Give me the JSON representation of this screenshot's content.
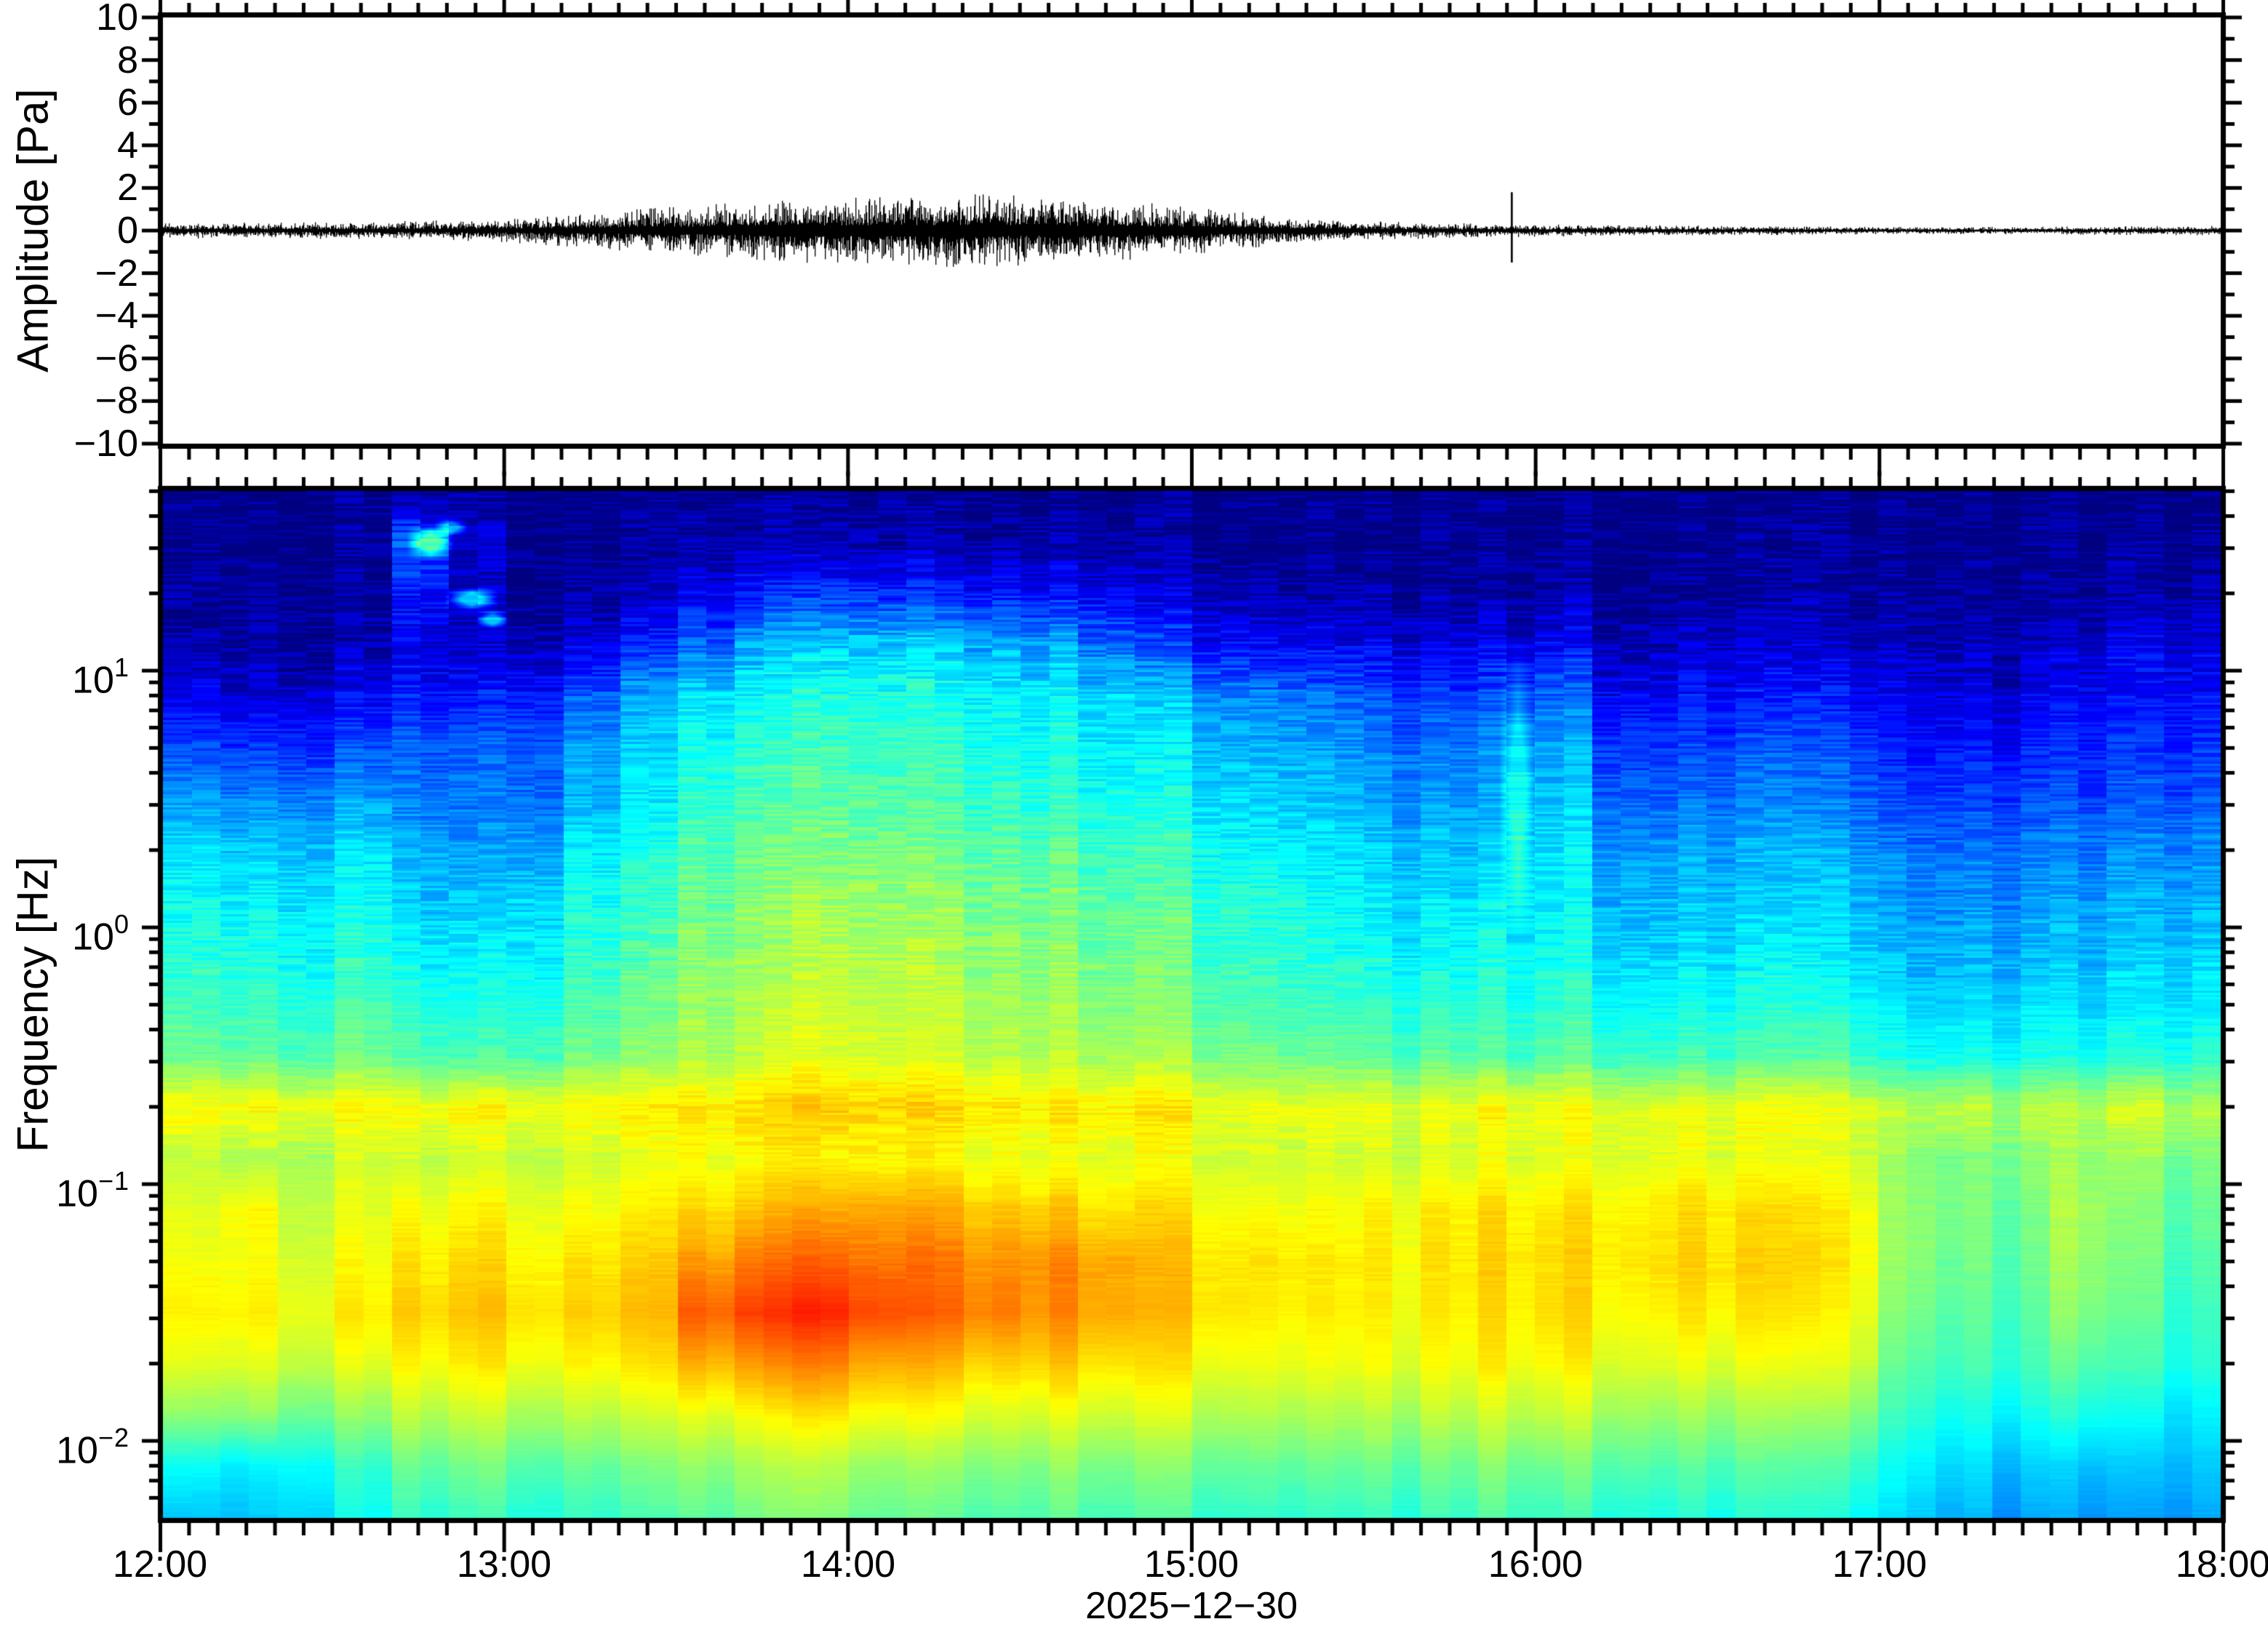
{
  "figure": {
    "background": "#ffffff",
    "frame_color": "#000000",
    "trace_color": "#000000"
  },
  "waveform_panel": {
    "ylabel": "Amplitude [Pa]",
    "ytick_labels": [
      "10",
      "8",
      "6",
      "4",
      "2",
      "0",
      "−2",
      "−4",
      "−6",
      "−8",
      "−10"
    ],
    "ylim": [
      -10,
      10
    ]
  },
  "spectrogram_panel": {
    "ylabel": "Frequency [Hz]",
    "ytick_labels": [
      {
        "base": "10",
        "exp": "1"
      },
      {
        "base": "10",
        "exp": "0"
      },
      {
        "base": "10",
        "exp": "−1"
      },
      {
        "base": "10",
        "exp": "−2"
      }
    ]
  },
  "xaxis": {
    "tick_labels": [
      "12:00",
      "13:00",
      "14:00",
      "15:00",
      "16:00",
      "17:00",
      "18:00"
    ],
    "date_label": "2025−12−30"
  },
  "chart_data": [
    {
      "type": "line",
      "name": "infrasound-waveform",
      "ylabel": "Amplitude [Pa]",
      "ylim": [
        -10,
        10
      ],
      "x_start_hour": 12,
      "x_end_hour": 18,
      "envelope_hours": [
        12.0,
        12.3,
        12.6,
        12.8,
        13.0,
        13.2,
        13.4,
        13.6,
        13.8,
        14.0,
        14.2,
        14.4,
        14.6,
        14.8,
        15.0,
        15.2,
        15.4,
        15.6,
        15.8,
        16.0,
        16.3,
        16.6,
        17.0,
        17.4,
        17.7,
        18.0
      ],
      "envelope_amplitude_pa": [
        0.22,
        0.22,
        0.24,
        0.28,
        0.33,
        0.45,
        0.6,
        0.72,
        0.85,
        0.95,
        1.0,
        1.0,
        0.92,
        0.82,
        0.65,
        0.45,
        0.3,
        0.24,
        0.2,
        0.17,
        0.15,
        0.13,
        0.1,
        0.1,
        0.12,
        0.13
      ],
      "transient": {
        "hour": 15.93,
        "peak_pa": 1.8,
        "trough_pa": -1.5
      }
    },
    {
      "type": "heatmap",
      "name": "spectrogram",
      "ylabel": "Frequency [Hz]",
      "yscale": "log",
      "freq_range_hz": [
        0.005,
        50
      ],
      "log10f_top": 1.7,
      "log10f_bottom": -2.3,
      "time_start_hour": 12,
      "time_end_hour": 18,
      "time_bin_minutes": 10,
      "colormap": "jet",
      "row_log10f": [
        1.7,
        1.5,
        1.3,
        1.1,
        0.9,
        0.7,
        0.5,
        0.3,
        0.1,
        -0.1,
        -0.3,
        -0.5,
        -0.7,
        -0.9,
        -1.1,
        -1.3,
        -1.5,
        -1.7,
        -1.9,
        -2.1,
        -2.3
      ],
      "values_0_100": [
        [
          3,
          3,
          3,
          3,
          3,
          3,
          3,
          3,
          3,
          4,
          4,
          4,
          4,
          4,
          4,
          4,
          4,
          3,
          3,
          3,
          3,
          3,
          3,
          3,
          3,
          3,
          3,
          3,
          3,
          3,
          3,
          3,
          3,
          3,
          3,
          3
        ],
        [
          3,
          3,
          3,
          3,
          22,
          8,
          4,
          4,
          5,
          5,
          6,
          6,
          6,
          6,
          6,
          6,
          5,
          4,
          4,
          3,
          3,
          3,
          3,
          3,
          3,
          3,
          3,
          3,
          3,
          3,
          3,
          3,
          3,
          3,
          4,
          4
        ],
        [
          4,
          4,
          4,
          4,
          14,
          6,
          5,
          6,
          8,
          12,
          16,
          18,
          18,
          17,
          16,
          15,
          14,
          10,
          8,
          6,
          6,
          5,
          5,
          5,
          6,
          4,
          4,
          4,
          4,
          4,
          4,
          4,
          4,
          5,
          5,
          6
        ],
        [
          6,
          5,
          5,
          6,
          10,
          8,
          9,
          12,
          18,
          24,
          30,
          33,
          34,
          33,
          32,
          31,
          26,
          20,
          16,
          14,
          13,
          12,
          12,
          12,
          14,
          9,
          9,
          9,
          9,
          9,
          7,
          7,
          7,
          10,
          12,
          12
        ],
        [
          12,
          11,
          11,
          12,
          15,
          15,
          18,
          24,
          30,
          36,
          39,
          41,
          41,
          40,
          39,
          38,
          36,
          32,
          28,
          26,
          24,
          20,
          20,
          20,
          24,
          15,
          15,
          15,
          15,
          15,
          11,
          11,
          11,
          14,
          14,
          15
        ],
        [
          20,
          19,
          19,
          20,
          22,
          22,
          25,
          30,
          34,
          40,
          42,
          44,
          44,
          43,
          42,
          41,
          38,
          36,
          33,
          31,
          29,
          26,
          26,
          26,
          30,
          21,
          21,
          21,
          21,
          21,
          16,
          16,
          16,
          18,
          18,
          19
        ],
        [
          28,
          27,
          27,
          28,
          24,
          24,
          26,
          32,
          36,
          43,
          45,
          46,
          46,
          45,
          44,
          43,
          41,
          39,
          36,
          34,
          32,
          29,
          29,
          29,
          33,
          25,
          25,
          25,
          25,
          25,
          20,
          20,
          20,
          22,
          22,
          23
        ],
        [
          35,
          34,
          34,
          35,
          30,
          28,
          32,
          38,
          41,
          46,
          48,
          50,
          50,
          49,
          48,
          47,
          45,
          43,
          40,
          38,
          36,
          33,
          33,
          33,
          36,
          30,
          30,
          30,
          30,
          30,
          25,
          25,
          25,
          27,
          27,
          28
        ],
        [
          38,
          38,
          37,
          38,
          33,
          32,
          36,
          41,
          43,
          49,
          51,
          53,
          53,
          52,
          51,
          50,
          48,
          46,
          43,
          41,
          39,
          36,
          36,
          36,
          38,
          33,
          33,
          33,
          33,
          33,
          28,
          28,
          28,
          30,
          30,
          31
        ],
        [
          41,
          41,
          40,
          41,
          37,
          36,
          39,
          44,
          46,
          51,
          53,
          55,
          55,
          54,
          53,
          52,
          50,
          48,
          45,
          43,
          41,
          39,
          39,
          39,
          40,
          36,
          36,
          36,
          36,
          36,
          31,
          31,
          31,
          33,
          33,
          34
        ],
        [
          44,
          44,
          43,
          44,
          41,
          40,
          43,
          47,
          49,
          53,
          55,
          57,
          57,
          56,
          55,
          54,
          52,
          50,
          47,
          45,
          44,
          42,
          42,
          42,
          43,
          40,
          40,
          40,
          40,
          40,
          35,
          35,
          35,
          36,
          36,
          37
        ],
        [
          48,
          48,
          47,
          48,
          45,
          44,
          47,
          50,
          52,
          55,
          57,
          59,
          59,
          58,
          57,
          56,
          55,
          53,
          51,
          49,
          48,
          47,
          47,
          46,
          47,
          45,
          45,
          45,
          45,
          45,
          40,
          40,
          40,
          41,
          41,
          42
        ],
        [
          62,
          63,
          62,
          62,
          61,
          62,
          63,
          64,
          64,
          65,
          66,
          67,
          67,
          66,
          66,
          65,
          65,
          64,
          62,
          61,
          61,
          60,
          61,
          62,
          62,
          61,
          62,
          61,
          60,
          60,
          56,
          57,
          55,
          57,
          58,
          56
        ],
        [
          56,
          55,
          56,
          57,
          56,
          57,
          58,
          59,
          60,
          61,
          62,
          63,
          63,
          62,
          62,
          61,
          61,
          60,
          59,
          58,
          58,
          58,
          59,
          60,
          60,
          61,
          61,
          60,
          59,
          59,
          52,
          50,
          51,
          54,
          52,
          50
        ],
        [
          59,
          63,
          58,
          59,
          61,
          62,
          62,
          63,
          64,
          66,
          68,
          70,
          71,
          70,
          69,
          68,
          66,
          65,
          63,
          62,
          62,
          63,
          64,
          65,
          65,
          65,
          66,
          65,
          64,
          63,
          52,
          50,
          49,
          55,
          50,
          48
        ],
        [
          61,
          62,
          60,
          61,
          64,
          65,
          65,
          66,
          67,
          72,
          75,
          77,
          76,
          75,
          74,
          74,
          72,
          68,
          66,
          65,
          64,
          64,
          65,
          66,
          66,
          66,
          67,
          66,
          65,
          64,
          52,
          49,
          48,
          54,
          49,
          46
        ],
        [
          63,
          64,
          62,
          63,
          66,
          67,
          67,
          68,
          69,
          78,
          81,
          83,
          80,
          77,
          76,
          74,
          72,
          68,
          66,
          64,
          64,
          63,
          64,
          65,
          66,
          64,
          65,
          64,
          63,
          62,
          50,
          47,
          46,
          52,
          47,
          44
        ],
        [
          59,
          60,
          58,
          59,
          62,
          63,
          63,
          64,
          65,
          70,
          72,
          74,
          71,
          69,
          68,
          68,
          66,
          64,
          62,
          61,
          61,
          61,
          62,
          63,
          63,
          61,
          61,
          60,
          59,
          59,
          47,
          45,
          44,
          48,
          44,
          42
        ],
        [
          51,
          52,
          50,
          51,
          55,
          56,
          56,
          57,
          58,
          60,
          62,
          64,
          62,
          61,
          60,
          60,
          59,
          58,
          56,
          55,
          55,
          55,
          56,
          57,
          57,
          55,
          54,
          53,
          52,
          52,
          43,
          40,
          39,
          42,
          38,
          37
        ],
        [
          38,
          37,
          40,
          42,
          47,
          48,
          48,
          49,
          50,
          52,
          54,
          55,
          53,
          52,
          52,
          52,
          51,
          50,
          49,
          48,
          48,
          48,
          49,
          50,
          49,
          48,
          47,
          46,
          45,
          45,
          38,
          35,
          33,
          34,
          32,
          33
        ],
        [
          32,
          33,
          36,
          38,
          42,
          43,
          43,
          44,
          45,
          47,
          49,
          50,
          48,
          47,
          47,
          47,
          46,
          45,
          44,
          43,
          43,
          43,
          44,
          45,
          44,
          43,
          42,
          41,
          40,
          40,
          34,
          31,
          29,
          30,
          28,
          30
        ]
      ],
      "anomalies": [
        {
          "hour": 12.78,
          "hour_halfwidth": 0.07,
          "log10f": 1.5,
          "log10f_halfwidth": 0.07,
          "boost": 0.27
        },
        {
          "hour": 12.84,
          "hour_halfwidth": 0.05,
          "log10f": 1.56,
          "log10f_halfwidth": 0.04,
          "boost": 0.2
        },
        {
          "hour": 12.9,
          "hour_halfwidth": 0.08,
          "log10f": 1.28,
          "log10f_halfwidth": 0.05,
          "boost": 0.28
        },
        {
          "hour": 12.96,
          "hour_halfwidth": 0.05,
          "log10f": 1.2,
          "log10f_halfwidth": 0.04,
          "boost": 0.22
        },
        {
          "hour": 15.95,
          "hour_halfwidth": 0.055,
          "log10f": 0.55,
          "log10f_halfwidth": 0.6,
          "boost": 0.13
        }
      ]
    }
  ]
}
